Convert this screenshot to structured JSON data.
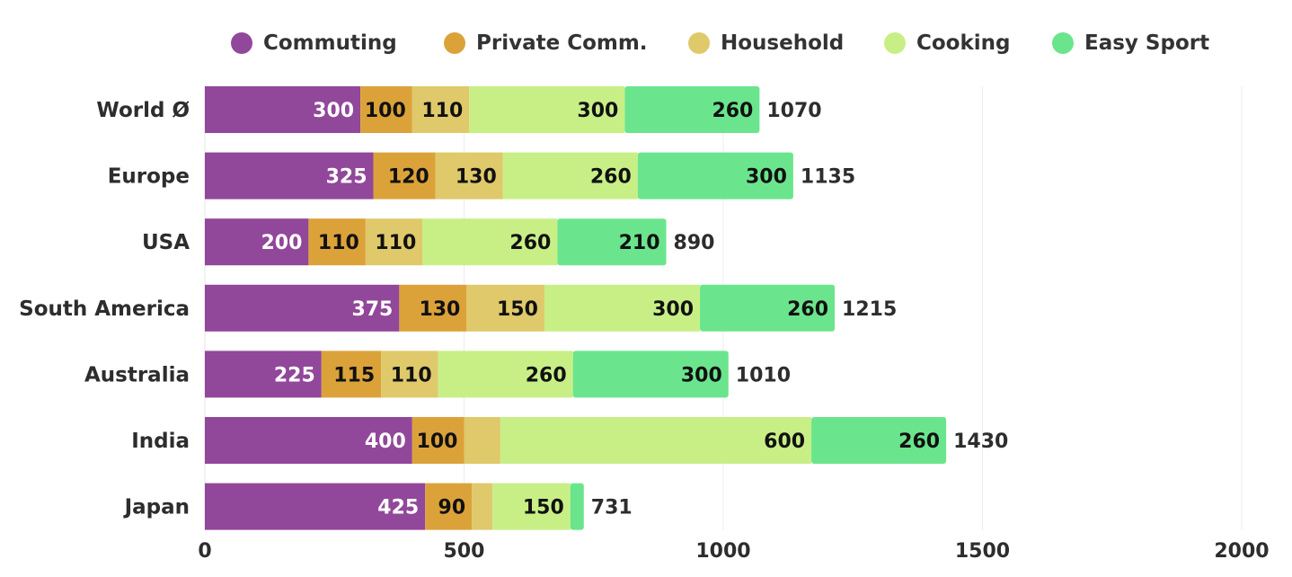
{
  "chart_data": {
    "type": "bar",
    "orientation": "horizontal",
    "stacked": true,
    "title": "",
    "xlabel": "",
    "ylabel": "",
    "xlim": [
      0,
      2000
    ],
    "x_ticks": [
      "0",
      "500",
      "1000",
      "1500",
      "2000"
    ],
    "grid": "vertical",
    "legend_position": "top",
    "categories": [
      "World Ø",
      "Europe",
      "USA",
      "South America",
      "Australia",
      "India",
      "Japan"
    ],
    "series": [
      {
        "name": "Commuting",
        "color": "#91479a",
        "label_color": "#ffffff",
        "values": [
          300,
          325,
          200,
          375,
          225,
          400,
          425
        ],
        "labels": [
          "300",
          "325",
          "200",
          "375",
          "225",
          "400",
          "425"
        ]
      },
      {
        "name": "Private Comm.",
        "color": "#dca23a",
        "label_color": "#111111",
        "values": [
          100,
          120,
          110,
          130,
          115,
          100,
          90
        ],
        "labels": [
          "100",
          "120",
          "110",
          "130",
          "115",
          "100",
          "90"
        ]
      },
      {
        "name": "Household",
        "color": "#dfc96a",
        "label_color": "#111111",
        "values": [
          110,
          130,
          110,
          150,
          110,
          70,
          40
        ],
        "labels": [
          "110",
          "130",
          "110",
          "150",
          "110",
          "",
          ""
        ]
      },
      {
        "name": "Cooking",
        "color": "#c8ef86",
        "label_color": "#111111",
        "values": [
          300,
          260,
          260,
          300,
          260,
          600,
          150
        ],
        "labels": [
          "300",
          "260",
          "260",
          "300",
          "260",
          "600",
          "150"
        ]
      },
      {
        "name": "Easy Sport",
        "color": "#6be58d",
        "label_color": "#111111",
        "values": [
          260,
          300,
          210,
          260,
          300,
          260,
          26
        ],
        "labels": [
          "260",
          "300",
          "210",
          "260",
          "300",
          "260",
          ""
        ]
      }
    ],
    "totals": [
      "1070",
      "1135",
      "890",
      "1215",
      "1010",
      "1430",
      "731"
    ]
  }
}
